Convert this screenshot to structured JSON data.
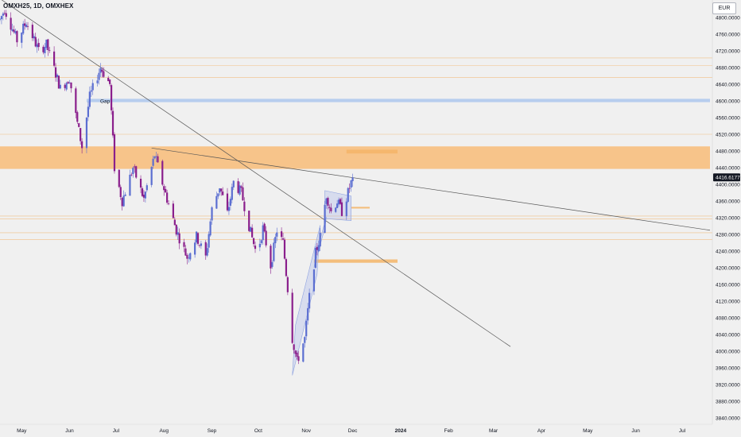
{
  "header": {
    "symbol": "OMXH25, 1D, OMXHEX",
    "currency": "EUR"
  },
  "chart_data": {
    "type": "candlestick",
    "title": "",
    "y_axis": {
      "ticks": [
        4800,
        4760,
        4720,
        4680,
        4640,
        4600,
        4560,
        4520,
        4480,
        4440,
        4400,
        4360,
        4320,
        4280,
        4240,
        4200,
        4160,
        4120,
        4080,
        4040,
        4000,
        3960,
        3920,
        3880,
        3840
      ],
      "decimals": 4,
      "range": [
        3820,
        4830
      ]
    },
    "x_axis": {
      "labels": [
        "May",
        "Jun",
        "Jul",
        "Aug",
        "Sep",
        "Oct",
        "Nov",
        "Dec",
        "2024",
        "Feb",
        "Mar",
        "Apr",
        "May",
        "Jun",
        "Jul"
      ],
      "strong": [
        "2024"
      ],
      "range": [
        "2023-04-17",
        "2024-07-19"
      ]
    },
    "last_price": {
      "value": 4416.6177,
      "label": "4416.6177"
    },
    "colors": {
      "up": "#5b6ed1",
      "down": "#8a1f8c",
      "orange_zone": "#f7c48a",
      "orange_line": "#f2b26a",
      "gap_zone": "#b7cdee",
      "trend_line": "#555555",
      "channel": "#8fa3e0"
    },
    "gap_label": "Gap",
    "zones": [
      {
        "from": "2023-06-12",
        "to": "2024-07-19",
        "low": 4597,
        "high": 4605,
        "kind": "gap"
      },
      {
        "from": "2023-04-17",
        "to": "2024-07-19",
        "low": 4437,
        "high": 4491,
        "kind": "supply"
      },
      {
        "from": "2023-11-27",
        "to": "2023-12-30",
        "low": 4474,
        "high": 4483,
        "kind": "small"
      },
      {
        "from": "2023-11-30",
        "to": "2023-12-12",
        "low": 4342,
        "high": 4346,
        "kind": "small"
      },
      {
        "from": "2023-11-06",
        "to": "2023-12-30",
        "low": 4212,
        "high": 4220,
        "kind": "small"
      }
    ],
    "levels": [
      4703,
      4685,
      4656,
      4520,
      4324,
      4317,
      4284,
      4268
    ],
    "trend_lines": [
      {
        "from": {
          "date": "2023-04-17",
          "value": 4845
        },
        "to": {
          "date": "2024-03-12",
          "value": 4011
        }
      },
      {
        "from": {
          "date": "2023-07-24",
          "value": 4487
        },
        "to": {
          "date": "2024-07-19",
          "value": 4290
        }
      }
    ],
    "channels": [
      [
        {
          "date": "2023-10-23",
          "value": 3942
        },
        {
          "date": "2023-11-08",
          "value": 4185
        },
        {
          "date": "2023-11-10",
          "value": 4302
        },
        {
          "date": "2023-10-25",
          "value": 4062
        }
      ],
      [
        {
          "date": "2023-11-06",
          "value": 4200
        },
        {
          "date": "2023-11-13",
          "value": 4295
        },
        {
          "date": "2023-11-14",
          "value": 4322
        },
        {
          "date": "2023-11-07",
          "value": 4228
        }
      ],
      [
        {
          "date": "2023-11-13",
          "value": 4385
        },
        {
          "date": "2023-11-30",
          "value": 4372
        },
        {
          "date": "2023-11-30",
          "value": 4313
        },
        {
          "date": "2023-11-13",
          "value": 4318
        }
      ]
    ],
    "pivots": [
      {
        "date": "2023-04-17",
        "value": 4795
      },
      {
        "date": "2023-04-20",
        "value": 4820
      },
      {
        "date": "2023-04-28",
        "value": 4745
      },
      {
        "date": "2023-05-04",
        "value": 4790
      },
      {
        "date": "2023-05-12",
        "value": 4720
      },
      {
        "date": "2023-05-17",
        "value": 4735
      },
      {
        "date": "2023-05-26",
        "value": 4630
      },
      {
        "date": "2023-06-01",
        "value": 4655
      },
      {
        "date": "2023-06-05",
        "value": 4565
      },
      {
        "date": "2023-06-09",
        "value": 4490
      },
      {
        "date": "2023-06-14",
        "value": 4610
      },
      {
        "date": "2023-06-21",
        "value": 4680
      },
      {
        "date": "2023-06-27",
        "value": 4640
      },
      {
        "date": "2023-06-30",
        "value": 4440
      },
      {
        "date": "2023-07-05",
        "value": 4360
      },
      {
        "date": "2023-07-12",
        "value": 4440
      },
      {
        "date": "2023-07-19",
        "value": 4365
      },
      {
        "date": "2023-07-26",
        "value": 4470
      },
      {
        "date": "2023-08-01",
        "value": 4390
      },
      {
        "date": "2023-08-09",
        "value": 4290
      },
      {
        "date": "2023-08-16",
        "value": 4225
      },
      {
        "date": "2023-08-22",
        "value": 4275
      },
      {
        "date": "2023-08-28",
        "value": 4225
      },
      {
        "date": "2023-09-01",
        "value": 4340
      },
      {
        "date": "2023-09-06",
        "value": 4395
      },
      {
        "date": "2023-09-11",
        "value": 4330
      },
      {
        "date": "2023-09-15",
        "value": 4405
      },
      {
        "date": "2023-09-20",
        "value": 4380
      },
      {
        "date": "2023-09-26",
        "value": 4285
      },
      {
        "date": "2023-09-30",
        "value": 4230
      },
      {
        "date": "2023-10-04",
        "value": 4295
      },
      {
        "date": "2023-10-09",
        "value": 4205
      },
      {
        "date": "2023-10-13",
        "value": 4290
      },
      {
        "date": "2023-10-17",
        "value": 4260
      },
      {
        "date": "2023-10-20",
        "value": 4150
      },
      {
        "date": "2023-10-23",
        "value": 4030
      },
      {
        "date": "2023-10-26",
        "value": 3975
      },
      {
        "date": "2023-10-31",
        "value": 4030
      },
      {
        "date": "2023-11-03",
        "value": 4130
      },
      {
        "date": "2023-11-07",
        "value": 4235
      },
      {
        "date": "2023-11-10",
        "value": 4275
      },
      {
        "date": "2023-11-14",
        "value": 4375
      },
      {
        "date": "2023-11-17",
        "value": 4335
      },
      {
        "date": "2023-11-21",
        "value": 4360
      },
      {
        "date": "2023-11-24",
        "value": 4335
      },
      {
        "date": "2023-11-28",
        "value": 4380
      },
      {
        "date": "2023-12-01",
        "value": 4416.6
      }
    ]
  }
}
